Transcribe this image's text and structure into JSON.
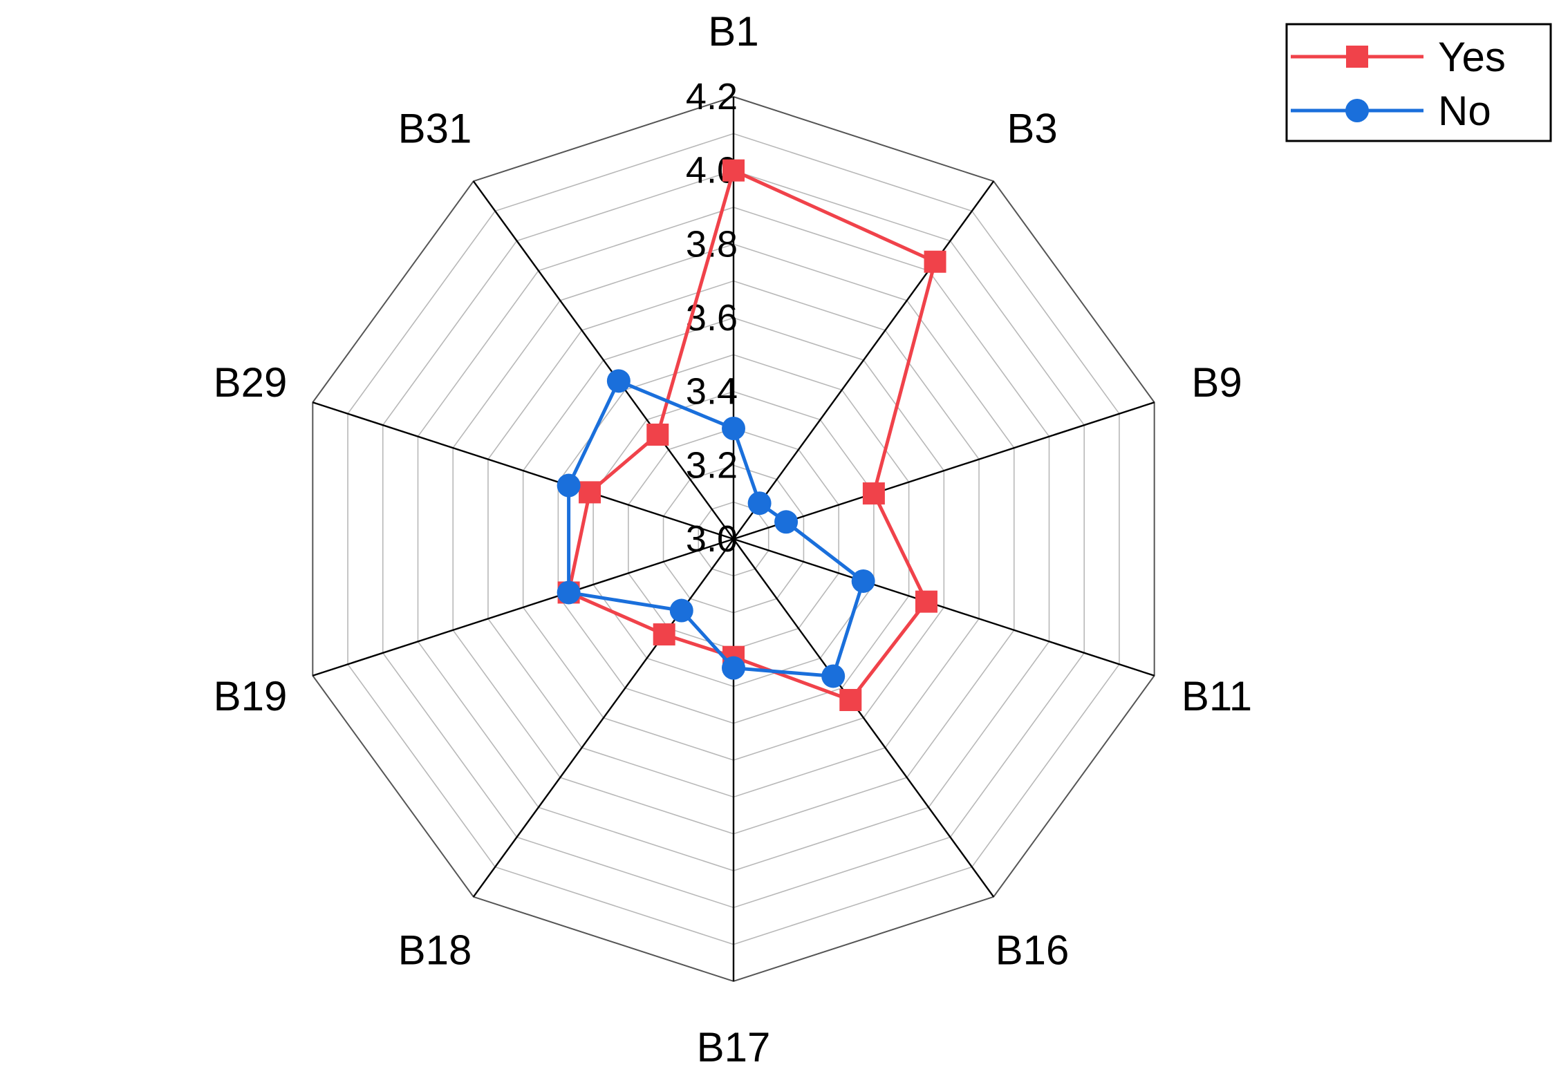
{
  "chart_data": {
    "type": "radar",
    "categories": [
      "B1",
      "B3",
      "B9",
      "B11",
      "B16",
      "B17",
      "B18",
      "B19",
      "B29",
      "B31"
    ],
    "rlim": [
      3.0,
      4.2
    ],
    "rticks": [
      "3.0",
      "3.2",
      "3.4",
      "3.6",
      "3.8",
      "4.0",
      "4.2"
    ],
    "grid": true,
    "legend_position": "top-right",
    "series": [
      {
        "name": "Yes",
        "color": "#f0424a",
        "marker": "square",
        "values": [
          4.0,
          3.93,
          3.4,
          3.55,
          3.54,
          3.32,
          3.32,
          3.47,
          3.41,
          3.35
        ]
      },
      {
        "name": "No",
        "color": "#1a6fdb",
        "marker": "circle",
        "values": [
          3.3,
          3.12,
          3.15,
          3.37,
          3.46,
          3.35,
          3.24,
          3.47,
          3.47,
          3.53
        ]
      }
    ]
  }
}
